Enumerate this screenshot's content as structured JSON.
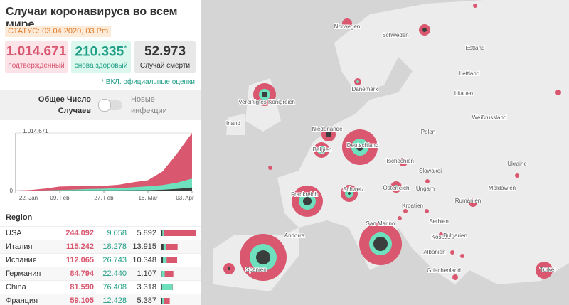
{
  "header": {
    "title": "Случаи коронавируса во всем мире",
    "status": "СТАТУС: 03.04.2020, 03 Pm"
  },
  "stats": {
    "confirmed": {
      "value": "1.014.671",
      "label": "подтвержденный"
    },
    "recovered": {
      "value": "210.335",
      "mark": "*",
      "label": "снова здоровый"
    },
    "deaths": {
      "value": "52.973",
      "label": "Случай смерти"
    },
    "note": "* ВКЛ. официальные оценки"
  },
  "toggle": {
    "left": "Общее Число Случаев",
    "right": "Новые инфекции"
  },
  "chart_data": {
    "type": "area",
    "x": [
      0,
      6,
      12,
      18,
      24,
      30,
      36,
      42,
      48,
      54,
      60,
      66,
      72
    ],
    "xticks": [
      {
        "value": 0,
        "label": "22. Jan"
      },
      {
        "value": 18,
        "label": "09. Feb"
      },
      {
        "value": 36,
        "label": "27. Feb"
      },
      {
        "value": 54,
        "label": "16. Mär"
      },
      {
        "value": 72,
        "label": "03. Apr"
      }
    ],
    "xlim": [
      0,
      72
    ],
    "ylim": [
      0,
      1014671
    ],
    "yticks": [
      {
        "value": 0,
        "label": "0"
      },
      {
        "value": 1014671,
        "label": "1.014.671"
      }
    ],
    "series": [
      {
        "color": "#d9576f",
        "values": [
          555,
          9800,
          34000,
          71000,
          77000,
          80000,
          83000,
          101000,
          145000,
          182000,
          337000,
          660000,
          1014671
        ]
      },
      {
        "color": "#6fe0bd",
        "values": [
          28,
          200,
          1000,
          10000,
          18000,
          28000,
          33000,
          42000,
          58000,
          75000,
          96000,
          140000,
          210335
        ]
      },
      {
        "color": "#3a3f3e",
        "values": [
          17,
          200,
          700,
          1700,
          2400,
          2900,
          3000,
          3400,
          5000,
          7000,
          14000,
          30000,
          52973
        ]
      }
    ]
  },
  "table": {
    "header": "Region",
    "rows": [
      {
        "region": "USA",
        "values": [
          244092,
          9058,
          5892
        ],
        "value_labels": [
          "244.092",
          "9.058",
          "5.892"
        ]
      },
      {
        "region": "Италия",
        "values": [
          115242,
          18278,
          13915
        ],
        "value_labels": [
          "115.242",
          "18.278",
          "13.915"
        ]
      },
      {
        "region": "Испания",
        "values": [
          112065,
          26743,
          10348
        ],
        "value_labels": [
          "112.065",
          "26.743",
          "10.348"
        ]
      },
      {
        "region": "Германия",
        "values": [
          84794,
          22440,
          1107
        ],
        "value_labels": [
          "84.794",
          "22.440",
          "1.107"
        ]
      },
      {
        "region": "China",
        "values": [
          81590,
          76408,
          3318
        ],
        "value_labels": [
          "81.590",
          "76.408",
          "3.318"
        ]
      },
      {
        "region": "Франция",
        "values": [
          59105,
          12428,
          5387
        ],
        "value_labels": [
          "59.105",
          "12.428",
          "5.387"
        ]
      }
    ]
  },
  "map": {
    "labels": [
      "Norwegen",
      "Schweden",
      "Estland",
      "Lettland",
      "Dänemark",
      "Litauen",
      "Vereinigtes Königreich",
      "Irland",
      "Niederlande",
      "Weißrussland",
      "Polen",
      "Belgien",
      "Deutschland",
      "Tschechien",
      "Slowakei",
      "Ukraine",
      "Österreich",
      "Ungarn",
      "Moldawien",
      "Frankreich",
      "Schweiz",
      "Kroatien",
      "Rumänien",
      "Serbien",
      "Andorra",
      "San Marino",
      "Kosovo",
      "Bulgarien",
      "Albanien",
      "Griechenland",
      "Spanien",
      "Türkei"
    ]
  }
}
